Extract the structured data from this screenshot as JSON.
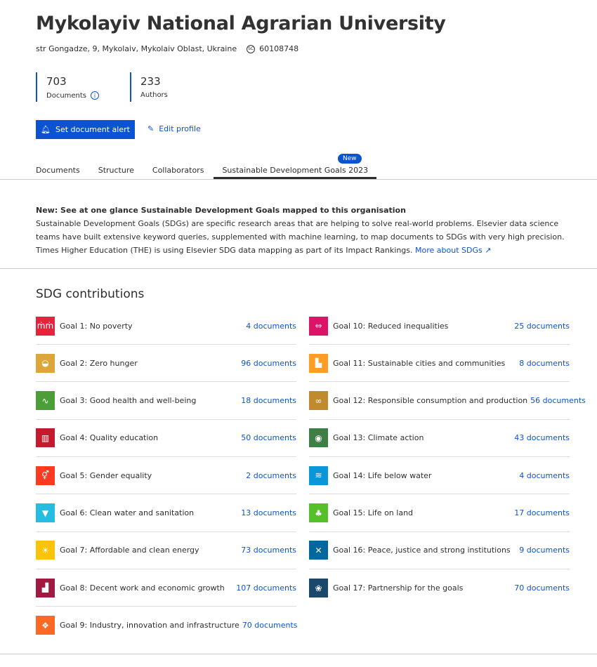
{
  "header": {
    "title": "Mykolayiv National Agrarian University",
    "address": "str Gongadze, 9, Mykolaiv, Mykolaiv Oblast, Ukraine",
    "scopus_id": "60108748"
  },
  "metrics": [
    {
      "value": "703",
      "label": "Documents"
    },
    {
      "value": "233",
      "label": "Authors"
    }
  ],
  "actions": {
    "alert": "Set document alert",
    "edit": "Edit profile"
  },
  "tabs": [
    {
      "label": "Documents"
    },
    {
      "label": "Structure"
    },
    {
      "label": "Collaborators"
    },
    {
      "label": "Sustainable Development Goals 2023",
      "active": true,
      "badge": "New"
    }
  ],
  "notice": {
    "title": "New: See at one glance Sustainable Development Goals mapped to this organisation",
    "body": "Sustainable Development Goals (SDGs) are specific research areas that are helping to solve real-world problems. Elsevier data science teams have built extensive keyword queries, supplemented with machine learning, to map documents to SDGs with very high precision. Times Higher Education (THE) is using Elsevier SDG data mapping as part of its Impact Rankings.",
    "link": "More about SDGs"
  },
  "sdg": {
    "title": "SDG contributions",
    "goals": [
      {
        "label": "Goal 1: No poverty",
        "count": "4 documents",
        "color": "#E5243B",
        "icon": "people-icon"
      },
      {
        "label": "Goal 2: Zero hunger",
        "count": "96 documents",
        "color": "#DDA63A",
        "icon": "bowl-icon"
      },
      {
        "label": "Goal 3: Good health and well-being",
        "count": "18 documents",
        "color": "#4C9F38",
        "icon": "heartbeat-icon"
      },
      {
        "label": "Goal 4: Quality education",
        "count": "50 documents",
        "color": "#C5192D",
        "icon": "book-icon"
      },
      {
        "label": "Goal 5: Gender equality",
        "count": "2 documents",
        "color": "#FF3A21",
        "icon": "gender-icon"
      },
      {
        "label": "Goal 6: Clean water and sanitation",
        "count": "13 documents",
        "color": "#26BDE2",
        "icon": "water-glass-icon"
      },
      {
        "label": "Goal 7: Affordable and clean energy",
        "count": "73 documents",
        "color": "#FCC30B",
        "icon": "sun-icon"
      },
      {
        "label": "Goal 8: Decent work and economic growth",
        "count": "107 documents",
        "color": "#A21942",
        "icon": "growth-chart-icon"
      },
      {
        "label": "Goal 9: Industry, innovation and infrastructure",
        "count": "70 documents",
        "color": "#FD6925",
        "icon": "cubes-icon"
      },
      {
        "label": "Goal 10: Reduced inequalities",
        "count": "25 documents",
        "color": "#DD1367",
        "icon": "equality-icon"
      },
      {
        "label": "Goal 11: Sustainable cities and communities",
        "count": "8 documents",
        "color": "#FD9D24",
        "icon": "city-icon"
      },
      {
        "label": "Goal 12: Responsible consumption and production",
        "count": "56 documents",
        "color": "#BF8B2E",
        "icon": "infinity-icon"
      },
      {
        "label": "Goal 13: Climate action",
        "count": "43 documents",
        "color": "#3F7E44",
        "icon": "eye-globe-icon"
      },
      {
        "label": "Goal 14: Life below water",
        "count": "4 documents",
        "color": "#0A97D9",
        "icon": "fish-icon"
      },
      {
        "label": "Goal 15: Life on land",
        "count": "17 documents",
        "color": "#56C02B",
        "icon": "tree-icon"
      },
      {
        "label": "Goal 16: Peace, justice and strong institutions",
        "count": "9 documents",
        "color": "#00689D",
        "icon": "dove-icon"
      },
      {
        "label": "Goal 17: Partnership for the goals",
        "count": "70 documents",
        "color": "#19486A",
        "icon": "flower-icon"
      }
    ]
  }
}
